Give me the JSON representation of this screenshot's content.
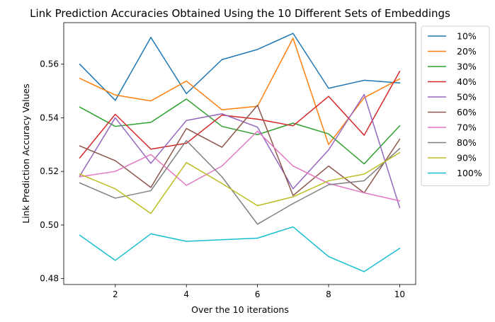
{
  "chart_data": {
    "type": "line",
    "title": "Link Prediction Accuracies Obtained Using the 10 Different Sets of Embeddings",
    "xlabel": "Over the 10 iterations",
    "ylabel": "Link Prediction Accuracy Values",
    "xlim": [
      0.55,
      10.45
    ],
    "ylim": [
      0.4778,
      0.5755
    ],
    "xticks": [
      2,
      4,
      6,
      8,
      10
    ],
    "yticks": [
      0.48,
      0.5,
      0.52,
      0.54,
      0.56
    ],
    "ytick_labels": [
      "0.48",
      "0.50",
      "0.52",
      "0.54",
      "0.56"
    ],
    "legend_position": "outside-right",
    "grid": false,
    "x": [
      1,
      2,
      3,
      4,
      5,
      6,
      7,
      8,
      9,
      10
    ],
    "series": [
      {
        "name": "10%",
        "color": "#1f77b4",
        "values": [
          0.56,
          0.5465,
          0.57,
          0.549,
          0.5617,
          0.5655,
          0.5715,
          0.551,
          0.554,
          0.553
        ]
      },
      {
        "name": "20%",
        "color": "#ff7f0e",
        "values": [
          0.5547,
          0.5485,
          0.5463,
          0.5537,
          0.543,
          0.5443,
          0.5697,
          0.53,
          0.5475,
          0.5545
        ]
      },
      {
        "name": "30%",
        "color": "#2ca02c",
        "values": [
          0.544,
          0.5368,
          0.5383,
          0.547,
          0.5368,
          0.5337,
          0.538,
          0.534,
          0.5228,
          0.537
        ]
      },
      {
        "name": "40%",
        "color": "#d62728",
        "values": [
          0.525,
          0.5413,
          0.5283,
          0.5305,
          0.541,
          0.5395,
          0.537,
          0.548,
          0.5335,
          0.5573
        ]
      },
      {
        "name": "50%",
        "color": "#9467bd",
        "values": [
          0.5183,
          0.54,
          0.523,
          0.539,
          0.5415,
          0.5365,
          0.5135,
          0.528,
          0.5487,
          0.5065
        ]
      },
      {
        "name": "60%",
        "color": "#8c564b",
        "values": [
          0.5295,
          0.524,
          0.514,
          0.536,
          0.529,
          0.5447,
          0.511,
          0.522,
          0.512,
          0.532
        ]
      },
      {
        "name": "70%",
        "color": "#e377c2",
        "values": [
          0.518,
          0.52,
          0.5263,
          0.5148,
          0.522,
          0.535,
          0.522,
          0.5155,
          0.512,
          0.509
        ]
      },
      {
        "name": "80%",
        "color": "#7f7f7f",
        "values": [
          0.5157,
          0.51,
          0.5128,
          0.5315,
          0.518,
          0.5003,
          0.508,
          0.515,
          0.5165,
          0.5285
        ]
      },
      {
        "name": "90%",
        "color": "#bcbd22",
        "values": [
          0.519,
          0.5135,
          0.5043,
          0.5233,
          0.5155,
          0.5072,
          0.5105,
          0.5165,
          0.519,
          0.527
        ]
      },
      {
        "name": "100%",
        "color": "#17becf",
        "values": [
          0.4962,
          0.4868,
          0.4967,
          0.4939,
          0.4945,
          0.4951,
          0.4993,
          0.4882,
          0.4826,
          0.4913
        ]
      }
    ]
  }
}
